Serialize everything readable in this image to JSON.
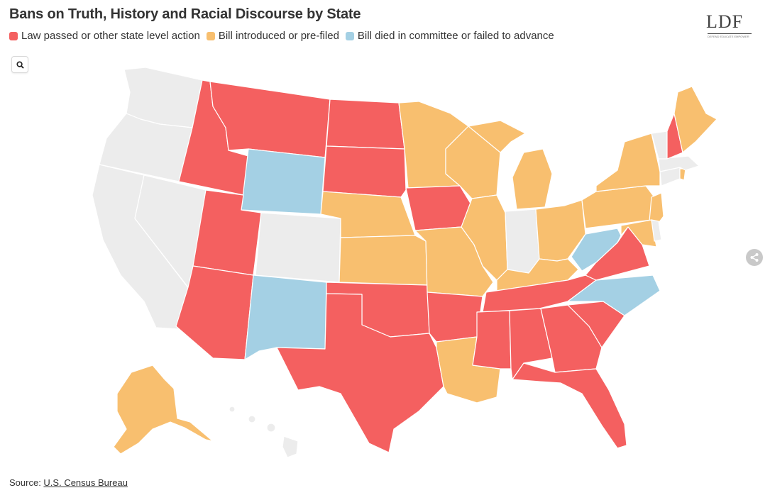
{
  "title": "Bans on Truth, History and Racial Discourse by State",
  "legend": [
    {
      "label": "Law passed or other state level action",
      "color": "#f46060"
    },
    {
      "label": "Bill introduced or pre-filed",
      "color": "#f8bf6f"
    },
    {
      "label": "Bill died in committee or failed to advance",
      "color": "#a4d0e4"
    }
  ],
  "no_action_color": "#ececec",
  "logo": {
    "text": "LDF",
    "subtitle": "DEFEND EDUCATE EMPOWER"
  },
  "controls": {
    "search_icon": "magnifier-icon",
    "share_icon": "share-icon"
  },
  "source": {
    "prefix": "Source: ",
    "link_text": "U.S. Census Bureau"
  },
  "states": {
    "WA": "none",
    "OR": "none",
    "CA": "none",
    "NV": "none",
    "CO": "none",
    "IN": "none",
    "VT": "none",
    "CT": "none",
    "MA": "none",
    "DE": "none",
    "HI": "none",
    "ID": "law",
    "MT": "law",
    "ND": "law",
    "SD": "law",
    "UT": "law",
    "AZ": "law",
    "TX": "law",
    "OK": "law",
    "IA": "law",
    "AR": "law",
    "MS": "law",
    "AL": "law",
    "TN": "law",
    "GA": "law",
    "SC": "law",
    "FL": "law",
    "VA": "law",
    "NH": "law",
    "MN": "bill",
    "WI": "bill",
    "MI": "bill",
    "IL": "bill",
    "MO": "bill",
    "KS": "bill",
    "NE": "bill",
    "LA": "bill",
    "KY": "bill",
    "OH": "bill",
    "PA": "bill",
    "NY": "bill",
    "NJ": "bill",
    "MD": "bill",
    "ME": "bill",
    "RI": "bill",
    "AK": "bill",
    "WY": "died",
    "NM": "died",
    "WV": "died",
    "NC": "died"
  }
}
